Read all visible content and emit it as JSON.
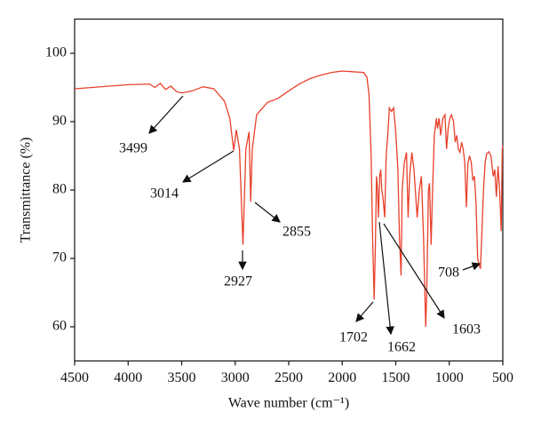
{
  "chart_data": {
    "type": "line",
    "x_label": "Wave number (cm⁻¹)",
    "y_label": "Transmittance (%)",
    "xlim": [
      4500,
      500
    ],
    "ylim": [
      55,
      105
    ],
    "xticks": [
      4500,
      4000,
      3500,
      3000,
      2500,
      2000,
      1500,
      1000,
      500
    ],
    "yticks": [
      60,
      70,
      80,
      90,
      100
    ],
    "annotations": [
      "3499",
      "3014",
      "2927",
      "2855",
      "1702",
      "1662",
      "1603",
      "708"
    ],
    "series": [
      {
        "color": "#e8402a",
        "x": [
          4500,
          4000,
          3800,
          3750,
          3700,
          3650,
          3600,
          3550,
          3499,
          3400,
          3300,
          3200,
          3100,
          3050,
          3014,
          2990,
          2960,
          2927,
          2900,
          2870,
          2855,
          2840,
          2800,
          2700,
          2600,
          2500,
          2400,
          2300,
          2200,
          2100,
          2000,
          1900,
          1800,
          1770,
          1750,
          1730,
          1715,
          1702,
          1690,
          1680,
          1670,
          1662,
          1650,
          1640,
          1630,
          1620,
          1603,
          1590,
          1575,
          1560,
          1540,
          1520,
          1500,
          1480,
          1465,
          1450,
          1440,
          1420,
          1400,
          1385,
          1370,
          1350,
          1330,
          1300,
          1280,
          1260,
          1240,
          1220,
          1210,
          1195,
          1185,
          1170,
          1160,
          1140,
          1120,
          1110,
          1095,
          1080,
          1060,
          1040,
          1025,
          1010,
          995,
          980,
          960,
          945,
          930,
          915,
          900,
          885,
          870,
          855,
          840,
          825,
          810,
          795,
          780,
          765,
          750,
          735,
          720,
          708,
          695,
          680,
          665,
          650,
          630,
          610,
          590,
          575,
          560,
          545,
          530,
          515,
          505,
          500
        ],
        "values": [
          94.8,
          95.4,
          95.5,
          95.0,
          95.6,
          94.7,
          95.2,
          94.4,
          94.2,
          94.5,
          95.1,
          94.8,
          93,
          90.5,
          85.8,
          88.8,
          86,
          72,
          86,
          88.5,
          78.3,
          86,
          91,
          92.8,
          93.4,
          94.5,
          95.5,
          96.3,
          96.8,
          97.2,
          97.4,
          97.3,
          97.2,
          96.5,
          94,
          85,
          72,
          64,
          72,
          82,
          80,
          76,
          82,
          83,
          80,
          79,
          76,
          85,
          88,
          92,
          91.5,
          92,
          88.5,
          83,
          73,
          67.5,
          80,
          84,
          85.5,
          76,
          82,
          85.5,
          83,
          76,
          80,
          82,
          73,
          60,
          65,
          80,
          81,
          72,
          78,
          88,
          90.5,
          89,
          90.5,
          88,
          90.5,
          91,
          86,
          89,
          90.5,
          91,
          90,
          87,
          88,
          86,
          85.5,
          87,
          86,
          84,
          77.5,
          84,
          85,
          84,
          81.5,
          82,
          78,
          70,
          69,
          68.5,
          74,
          80,
          84,
          85.3,
          85.6,
          85,
          82,
          83,
          79,
          83.5,
          80,
          74,
          86,
          86.5
        ]
      }
    ]
  }
}
